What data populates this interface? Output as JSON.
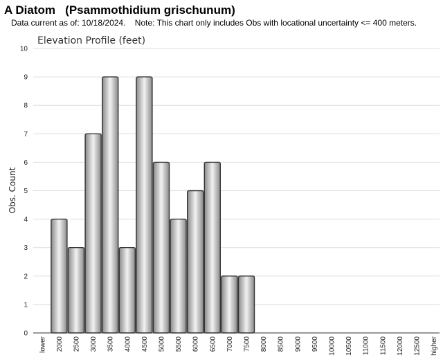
{
  "header": {
    "title": "A Diatom   (Psammothidium grischunum)",
    "note": "Data current as of: 10/18/2024.    Note: This chart only includes Obs with locational uncertainty <= 400 meters."
  },
  "chart_data": {
    "type": "bar",
    "title": "Elevation Profile (feet)",
    "xlabel": "",
    "ylabel": "Obs. Count",
    "ylim": [
      0,
      10
    ],
    "yticks": [
      "0",
      "1",
      "2",
      "3",
      "4",
      "5",
      "6",
      "7",
      "8",
      "9",
      "10"
    ],
    "grid": true,
    "categories": [
      "lower",
      "2000",
      "2500",
      "3000",
      "3500",
      "4000",
      "4500",
      "5000",
      "5500",
      "6000",
      "6500",
      "7000",
      "7500",
      "8000",
      "8500",
      "9000",
      "9500",
      "10000",
      "10500",
      "11000",
      "11500",
      "12000",
      "12500",
      "higher"
    ],
    "values": [
      0,
      4,
      3,
      7,
      9,
      3,
      9,
      6,
      4,
      5,
      6,
      2,
      2,
      0,
      0,
      0,
      0,
      0,
      0,
      0,
      0,
      0,
      0,
      0
    ],
    "colors": {
      "bar_fill_edge": "#8a8a8a",
      "bar_fill_center": "#f2f2f2",
      "bar_stroke": "#333333",
      "grid": "#dddddd"
    }
  }
}
